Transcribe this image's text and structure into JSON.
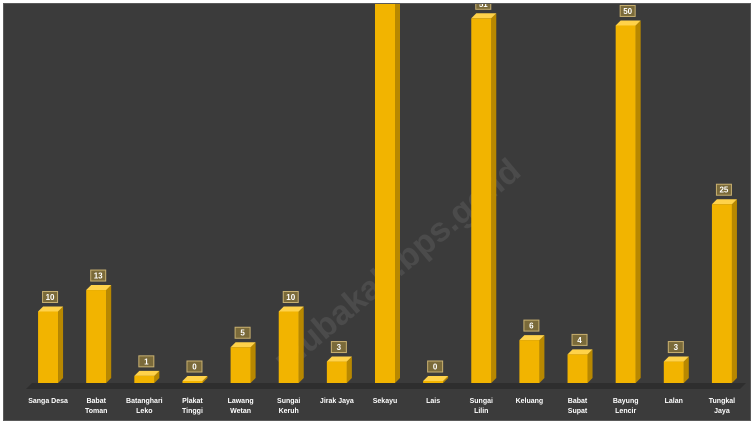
{
  "watermark": "mubakab.bps.go.id",
  "colors": {
    "background": "#3b3b3b",
    "bar_front": "#f2b400",
    "bar_side": "#b88800",
    "bar_top": "#ffd24a",
    "floor": "#2e2e2e",
    "label_box": "#7a6a3a",
    "label_border": "#c8b070"
  },
  "chart_data": {
    "type": "bar",
    "categories": [
      "Sanga Desa",
      "Babat Toman",
      "Batanghari Leko",
      "Plakat Tinggi",
      "Lawang Wetan",
      "Sungai Keruh",
      "Jirak Jaya",
      "Sekayu",
      "Lais",
      "Sungai Lilin",
      "Keluang",
      "Babat Supat",
      "Bayung Lencir",
      "Lalan",
      "Tungkal Jaya"
    ],
    "values": [
      10,
      13,
      1,
      0,
      5,
      10,
      3,
      55,
      0,
      51,
      6,
      4,
      50,
      3,
      25
    ],
    "data_labels": [
      "10",
      "13",
      "1",
      "0",
      "5",
      "10",
      "3",
      "",
      "0",
      "51",
      "6",
      "4",
      "50",
      "3",
      "25"
    ],
    "title": "",
    "xlabel": "",
    "ylabel": "",
    "ylim": [
      0,
      53
    ],
    "grid": false,
    "legend": "none"
  }
}
